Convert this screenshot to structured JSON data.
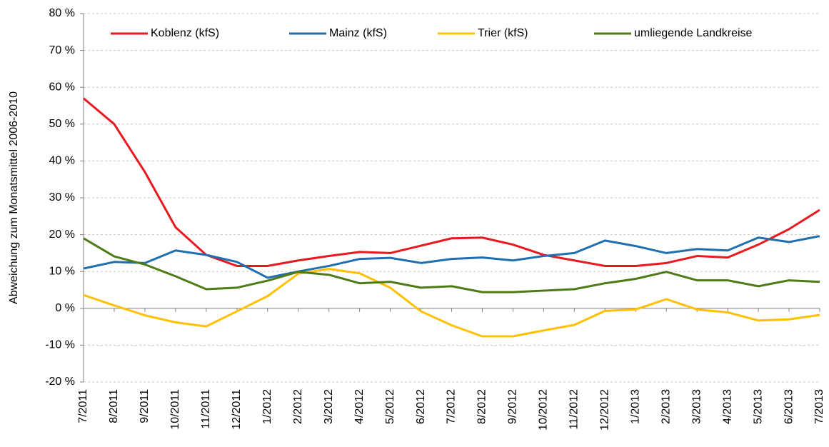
{
  "chart_data": {
    "type": "line",
    "y_label": "Abweichung zum Monatsmittel 2006-2010",
    "categories": [
      "7/2011",
      "8/2011",
      "9/2011",
      "10/2011",
      "11/2011",
      "12/2011",
      "1/2012",
      "2/2012",
      "3/2012",
      "4/2012",
      "5/2012",
      "6/2012",
      "7/2012",
      "8/2012",
      "9/2012",
      "10/2012",
      "11/2012",
      "12/2012",
      "1/2013",
      "2/2013",
      "3/2013",
      "4/2013",
      "5/2013",
      "6/2013",
      "7/2013"
    ],
    "series": [
      {
        "name": "Koblenz (kfS)",
        "color": "#e8191e",
        "values": [
          57,
          50,
          37,
          22,
          14.5,
          11.5,
          11.5,
          13,
          14.2,
          15.3,
          15,
          17,
          19,
          19.2,
          17.3,
          14.5,
          13,
          11.5,
          11.5,
          12.3,
          14.2,
          13.8,
          17.3,
          21.5,
          26.7
        ]
      },
      {
        "name": "Mainz (kfS)",
        "color": "#1f6fb0",
        "values": [
          10.8,
          12.6,
          12.3,
          15.7,
          14.5,
          12.6,
          8.3,
          10,
          11.5,
          13.4,
          13.7,
          12.3,
          13.4,
          13.8,
          13,
          14.2,
          15,
          18.4,
          16.9,
          15,
          16.1,
          15.7,
          19.2,
          18,
          19.6
        ]
      },
      {
        "name": "Trier (kfS)",
        "color": "#ffc000",
        "values": [
          3.6,
          0.8,
          -1.9,
          -3.8,
          -4.9,
          -0.8,
          3.3,
          9.4,
          10.7,
          9.5,
          5.6,
          -0.8,
          -4.6,
          -7.6,
          -7.6,
          -6,
          -4.5,
          -0.7,
          -0.3,
          2.5,
          -0.3,
          -1.1,
          -3.3,
          -3,
          -1.8
        ]
      },
      {
        "name": "umliegende Landkreise",
        "color": "#4f7b16",
        "values": [
          19,
          14.1,
          11.9,
          8.7,
          5.2,
          5.6,
          7.5,
          9.9,
          9.1,
          6.8,
          7.2,
          5.6,
          6,
          4.4,
          4.4,
          4.8,
          5.2,
          6.8,
          8,
          9.9,
          7.6,
          7.6,
          6,
          7.6,
          7.2
        ]
      }
    ],
    "ylim": [
      -20,
      80
    ],
    "yticks": [
      {
        "value": -20,
        "label": "-20 %"
      },
      {
        "value": -10,
        "label": "-10 %"
      },
      {
        "value": 0,
        "label": "0 %"
      },
      {
        "value": 10,
        "label": "10 %"
      },
      {
        "value": 20,
        "label": "20 %"
      },
      {
        "value": 30,
        "label": "30 %"
      },
      {
        "value": 40,
        "label": "40 %"
      },
      {
        "value": 50,
        "label": "50 %"
      },
      {
        "value": 60,
        "label": "60 %"
      },
      {
        "value": 70,
        "label": "70 %"
      },
      {
        "value": 80,
        "label": "80 %"
      }
    ],
    "grid": true,
    "legend": "top"
  }
}
